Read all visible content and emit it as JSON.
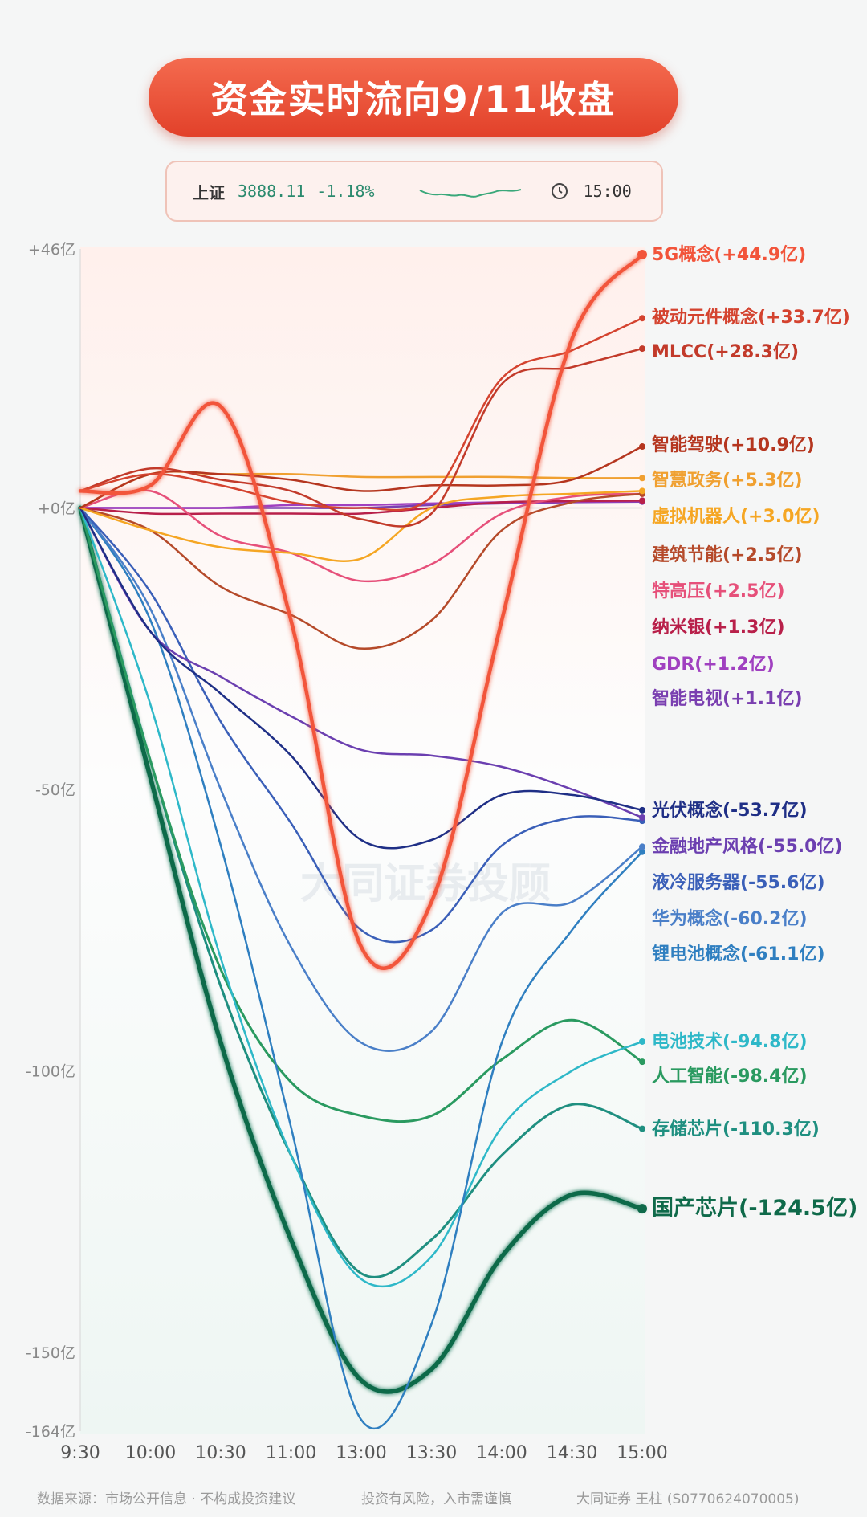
{
  "title": "资金实时流向9/11收盘",
  "index": {
    "name": "上证",
    "value": "3888.11",
    "change": "-1.18%",
    "time": "15:00"
  },
  "watermark": "大同证券投顾",
  "footer": {
    "source": "数据来源：市场公开信息 · 不构成投资建议",
    "risk": "投资有风险，入市需谨慎",
    "author": "大同证券 王柱 (S0770624070005)"
  },
  "chart_data": {
    "type": "line",
    "x": [
      "9:30",
      "10:00",
      "10:30",
      "11:00",
      "13:00",
      "13:30",
      "14:00",
      "14:30",
      "15:00"
    ],
    "ylim": [
      -164,
      46
    ],
    "yticks": [
      46,
      0,
      -50,
      -100,
      -150,
      -164
    ],
    "ytick_labels": [
      "+46亿",
      "+0亿",
      "-50亿",
      "-100亿",
      "-150亿",
      "-164亿"
    ],
    "grid": false,
    "legend": "right-end labels",
    "series": [
      {
        "name": "5G概念",
        "label": "(+44.9亿)",
        "color": "#f2543a",
        "width": 4.5,
        "values": [
          3,
          4,
          18,
          -20,
          -78,
          -70,
          -20,
          30,
          45
        ]
      },
      {
        "name": "被动元件概念",
        "label": "(+33.7亿)",
        "color": "#d4432f",
        "width": 2.5,
        "values": [
          3,
          6,
          4,
          1,
          0,
          2,
          23,
          28,
          33.7
        ]
      },
      {
        "name": "MLCC",
        "label": "(+28.3亿)",
        "color": "#c23a2a",
        "width": 2.5,
        "values": [
          3,
          7,
          5,
          3,
          -2,
          -1,
          22,
          25,
          28.3
        ]
      },
      {
        "name": "智能驾驶",
        "label": "(+10.9亿)",
        "color": "#b5361f",
        "width": 2.5,
        "values": [
          0,
          6,
          6,
          5,
          3,
          4,
          4,
          5,
          10.9
        ]
      },
      {
        "name": "智慧政务",
        "label": "(+5.3亿)",
        "color": "#f0a030",
        "width": 2.5,
        "values": [
          0,
          6,
          6,
          6,
          5.5,
          5.5,
          5.5,
          5.3,
          5.3
        ]
      },
      {
        "name": "虚拟机器人",
        "label": "(+3.0亿)",
        "color": "#f5a623",
        "width": 2.5,
        "values": [
          0,
          -4,
          -7,
          -8,
          -9,
          0,
          2,
          2.5,
          3.0
        ]
      },
      {
        "name": "建筑节能",
        "label": "(+2.5亿)",
        "color": "#b54a2a",
        "width": 2.5,
        "values": [
          0,
          -4,
          -14,
          -19,
          -25,
          -20,
          -4,
          1,
          2.5
        ]
      },
      {
        "name": "特高压",
        "label": "(+2.5亿)",
        "color": "#e6507a",
        "width": 2.5,
        "values": [
          0,
          3,
          -5,
          -8,
          -13,
          -10,
          -1,
          2,
          2.5
        ]
      },
      {
        "name": "纳米银",
        "label": "(+1.3亿)",
        "color": "#b8204a",
        "width": 2.5,
        "values": [
          0,
          -1,
          -1,
          -1,
          -1,
          0,
          1,
          1.2,
          1.3
        ]
      },
      {
        "name": "GDR",
        "label": "(+1.2亿)",
        "color": "#a040c0",
        "width": 2.5,
        "values": [
          0,
          0,
          0,
          0.5,
          0.5,
          0.8,
          1,
          1.1,
          1.2
        ]
      },
      {
        "name": "智能电视",
        "label": "(+1.1亿)",
        "color": "#7a3fb0",
        "width": 2.5,
        "values": [
          0,
          0,
          0,
          0,
          0,
          0.5,
          0.8,
          1,
          1.1
        ]
      },
      {
        "name": "光伏概念",
        "label": "(-53.7亿)",
        "color": "#1f2f86",
        "width": 2.5,
        "values": [
          0,
          -22,
          -33,
          -44,
          -59,
          -59,
          -51,
          -51,
          -53.7
        ]
      },
      {
        "name": "金融地产风格",
        "label": "(-55.0亿)",
        "color": "#6b3fb0",
        "width": 2.5,
        "values": [
          0,
          -22,
          -30,
          -37,
          -43,
          -44,
          -46,
          -50,
          -55.0
        ]
      },
      {
        "name": "液冷服务器",
        "label": "(-55.6亿)",
        "color": "#3a5fb8",
        "width": 2.5,
        "values": [
          0,
          -15,
          -38,
          -56,
          -75,
          -75,
          -60,
          -55,
          -55.6
        ]
      },
      {
        "name": "华为概念",
        "label": "(-60.2亿)",
        "color": "#4a7fc8",
        "width": 2.5,
        "values": [
          0,
          -18,
          -50,
          -78,
          -95,
          -93,
          -72,
          -70,
          -60.2
        ]
      },
      {
        "name": "锂电池概念",
        "label": "(-61.1亿)",
        "color": "#2f7fc0",
        "width": 2.5,
        "values": [
          0,
          -20,
          -60,
          -110,
          -162,
          -145,
          -95,
          -75,
          -61.1
        ]
      },
      {
        "name": "电池技术",
        "label": "(-94.8亿)",
        "color": "#2eb8c8",
        "width": 2.5,
        "values": [
          0,
          -35,
          -80,
          -115,
          -137,
          -133,
          -110,
          -100,
          -94.8
        ]
      },
      {
        "name": "人工智能",
        "label": "(-98.4亿)",
        "color": "#2a9a60",
        "width": 3,
        "values": [
          0,
          -45,
          -82,
          -102,
          -108,
          -108,
          -98,
          -91,
          -98.4
        ]
      },
      {
        "name": "存储芯片",
        "label": "(-110.3亿)",
        "color": "#1f8f80",
        "width": 3,
        "values": [
          0,
          -45,
          -85,
          -115,
          -136,
          -130,
          -115,
          -106,
          -110.3
        ]
      },
      {
        "name": "国产芯片",
        "label": "(-124.5亿)",
        "color": "#0f6a4a",
        "width": 5.5,
        "values": [
          0,
          -48,
          -95,
          -130,
          -155,
          -153,
          -133,
          -122,
          -124.5
        ]
      }
    ]
  }
}
